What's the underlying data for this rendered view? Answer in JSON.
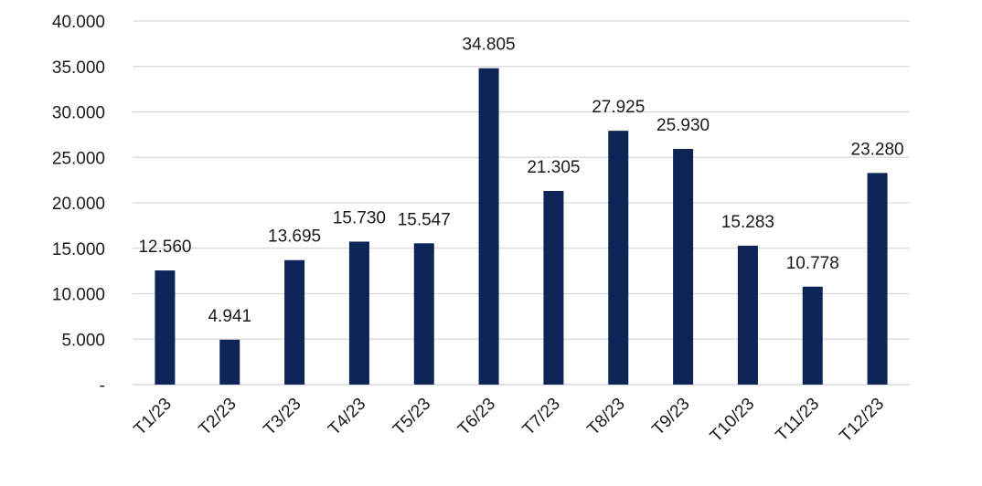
{
  "chart_data": {
    "type": "bar",
    "categories": [
      "T1/23",
      "T2/23",
      "T3/23",
      "T4/23",
      "T5/23",
      "T6/23",
      "T7/23",
      "T8/23",
      "T9/23",
      "T10/23",
      "T11/23",
      "T12/23"
    ],
    "values": [
      12560,
      4941,
      13695,
      15730,
      15547,
      34805,
      21305,
      27925,
      25930,
      15283,
      10778,
      23280
    ],
    "value_labels": [
      "12.560",
      "4.941",
      "13.695",
      "15.730",
      "15.547",
      "34.805",
      "21.305",
      "27.925",
      "25.930",
      "15.283",
      "10.778",
      "23.280"
    ],
    "y_ticks": [
      0,
      5000,
      10000,
      15000,
      20000,
      25000,
      30000,
      35000,
      40000
    ],
    "y_tick_labels": [
      "-",
      "5.000",
      "10.000",
      "15.000",
      "20.000",
      "25.000",
      "30.000",
      "35.000",
      "40.000"
    ],
    "ylim": [
      0,
      40000
    ],
    "grid": true,
    "legend": "none",
    "colors": {
      "bar": "#0d2557",
      "grid": "#d9d9d9"
    }
  }
}
